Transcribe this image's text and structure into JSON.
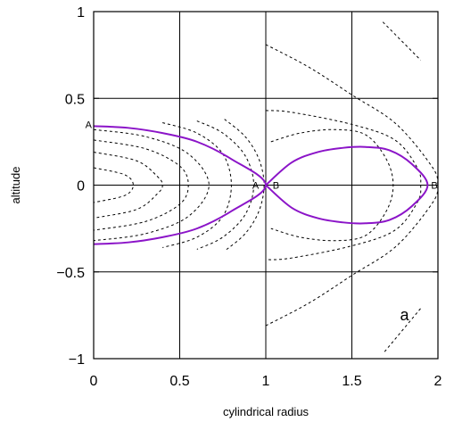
{
  "chart_data": {
    "type": "line",
    "title": "",
    "xlabel": "cylindrical radius",
    "ylabel": "altitude",
    "xlim": [
      0,
      2.0
    ],
    "ylim": [
      -1.0,
      1.0
    ],
    "x_ticks": [
      0,
      0.5,
      1,
      1.5,
      2
    ],
    "x_tick_labels": [
      "0",
      "0.5",
      "1",
      "1.5",
      "2"
    ],
    "y_ticks": [
      -1,
      -0.5,
      0,
      0.5,
      1
    ],
    "y_tick_labels": [
      "−1",
      "−0.5",
      "0",
      "0.5",
      "1"
    ],
    "grid": true,
    "legend": "none",
    "colors": {
      "separatrix": "#8b14c8",
      "contour": "#000000",
      "grid": "#000000"
    },
    "separatrix": {
      "inner_lobe": [
        [
          0.0,
          0.34
        ],
        [
          0.2,
          0.33
        ],
        [
          0.4,
          0.3
        ],
        [
          0.6,
          0.25
        ],
        [
          0.8,
          0.15
        ],
        [
          1.0,
          0.0
        ],
        [
          0.8,
          -0.15
        ],
        [
          0.6,
          -0.25
        ],
        [
          0.4,
          -0.3
        ],
        [
          0.2,
          -0.33
        ],
        [
          0.0,
          -0.34
        ]
      ],
      "outer_lobe": [
        [
          1.0,
          0.0
        ],
        [
          1.15,
          0.13
        ],
        [
          1.3,
          0.19
        ],
        [
          1.45,
          0.215
        ],
        [
          1.58,
          0.22
        ],
        [
          1.72,
          0.2
        ],
        [
          1.85,
          0.12
        ],
        [
          1.94,
          0.0
        ],
        [
          1.85,
          -0.12
        ],
        [
          1.72,
          -0.2
        ],
        [
          1.58,
          -0.22
        ],
        [
          1.45,
          -0.215
        ],
        [
          1.3,
          -0.19
        ],
        [
          1.15,
          -0.13
        ],
        [
          1.0,
          0.0
        ]
      ]
    },
    "contours": [
      {
        "points": [
          [
            0.0,
            0.1
          ],
          [
            0.18,
            0.06
          ],
          [
            0.23,
            0.0
          ],
          [
            0.18,
            -0.06
          ],
          [
            0.0,
            -0.1
          ]
        ]
      },
      {
        "points": [
          [
            0.0,
            0.19
          ],
          [
            0.25,
            0.14
          ],
          [
            0.37,
            0.05
          ],
          [
            0.4,
            0.0
          ],
          [
            0.37,
            -0.05
          ],
          [
            0.25,
            -0.14
          ],
          [
            0.0,
            -0.19
          ]
        ]
      },
      {
        "points": [
          [
            0.0,
            0.26
          ],
          [
            0.3,
            0.21
          ],
          [
            0.5,
            0.11
          ],
          [
            0.55,
            0.0
          ],
          [
            0.5,
            -0.11
          ],
          [
            0.3,
            -0.21
          ],
          [
            0.0,
            -0.26
          ]
        ]
      },
      {
        "points": [
          [
            0.0,
            0.32
          ],
          [
            0.3,
            0.28
          ],
          [
            0.55,
            0.18
          ],
          [
            0.67,
            0.0
          ],
          [
            0.55,
            -0.18
          ],
          [
            0.3,
            -0.28
          ],
          [
            0.0,
            -0.32
          ]
        ]
      },
      {
        "points": [
          [
            0.4,
            0.36
          ],
          [
            0.6,
            0.3
          ],
          [
            0.75,
            0.18
          ],
          [
            0.8,
            0.0
          ],
          [
            0.75,
            -0.18
          ],
          [
            0.6,
            -0.3
          ],
          [
            0.4,
            -0.36
          ]
        ]
      },
      {
        "points": [
          [
            0.6,
            0.37
          ],
          [
            0.75,
            0.3
          ],
          [
            0.88,
            0.17
          ],
          [
            0.93,
            0.0
          ],
          [
            0.88,
            -0.17
          ],
          [
            0.75,
            -0.3
          ],
          [
            0.6,
            -0.37
          ]
        ]
      },
      {
        "points": [
          [
            0.76,
            0.38
          ],
          [
            0.88,
            0.28
          ],
          [
            0.96,
            0.15
          ],
          [
            0.99,
            0.0
          ],
          [
            0.96,
            -0.15
          ],
          [
            0.88,
            -0.28
          ],
          [
            0.76,
            -0.38
          ]
        ]
      },
      {
        "points": [
          [
            1.0,
            0.43
          ],
          [
            1.15,
            0.42
          ],
          [
            1.5,
            0.35
          ],
          [
            1.75,
            0.26
          ],
          [
            1.88,
            0.1
          ],
          [
            1.9,
            0.0
          ],
          [
            1.88,
            -0.1
          ],
          [
            1.75,
            -0.26
          ],
          [
            1.5,
            -0.35
          ],
          [
            1.15,
            -0.42
          ],
          [
            1.0,
            -0.43
          ]
        ]
      },
      {
        "points": [
          [
            1.03,
            0.25
          ],
          [
            1.2,
            0.3
          ],
          [
            1.4,
            0.32
          ],
          [
            1.58,
            0.29
          ],
          [
            1.7,
            0.15
          ],
          [
            1.74,
            0.0
          ],
          [
            1.7,
            -0.15
          ],
          [
            1.58,
            -0.29
          ],
          [
            1.4,
            -0.32
          ],
          [
            1.2,
            -0.3
          ],
          [
            1.03,
            -0.25
          ]
        ]
      },
      {
        "points": [
          [
            1.0,
            0.81
          ],
          [
            1.25,
            0.68
          ],
          [
            1.5,
            0.52
          ],
          [
            1.76,
            0.35
          ],
          [
            1.97,
            0.1
          ],
          [
            2.0,
            0.0
          ]
        ]
      },
      {
        "points": [
          [
            1.0,
            -0.81
          ],
          [
            1.25,
            -0.68
          ],
          [
            1.5,
            -0.52
          ],
          [
            1.76,
            -0.35
          ],
          [
            1.97,
            -0.1
          ],
          [
            2.0,
            0.0
          ]
        ]
      },
      {
        "points": [
          [
            1.68,
            0.94
          ],
          [
            1.9,
            0.72
          ]
        ]
      },
      {
        "points": [
          [
            1.69,
            -0.96
          ],
          [
            1.9,
            -0.71
          ]
        ]
      }
    ],
    "annotations": [
      {
        "text": "A",
        "x": 0.0,
        "y": 0.35,
        "anchor": "end"
      },
      {
        "text": "A",
        "x": 0.97,
        "y": 0.0,
        "anchor": "end"
      },
      {
        "text": "B",
        "x": 1.03,
        "y": 0.0,
        "anchor": "start"
      },
      {
        "text": "B",
        "x": 1.95,
        "y": 0.0,
        "anchor": "start"
      }
    ],
    "panel_label": {
      "text": "a",
      "x": 1.78,
      "y": -0.78
    }
  }
}
